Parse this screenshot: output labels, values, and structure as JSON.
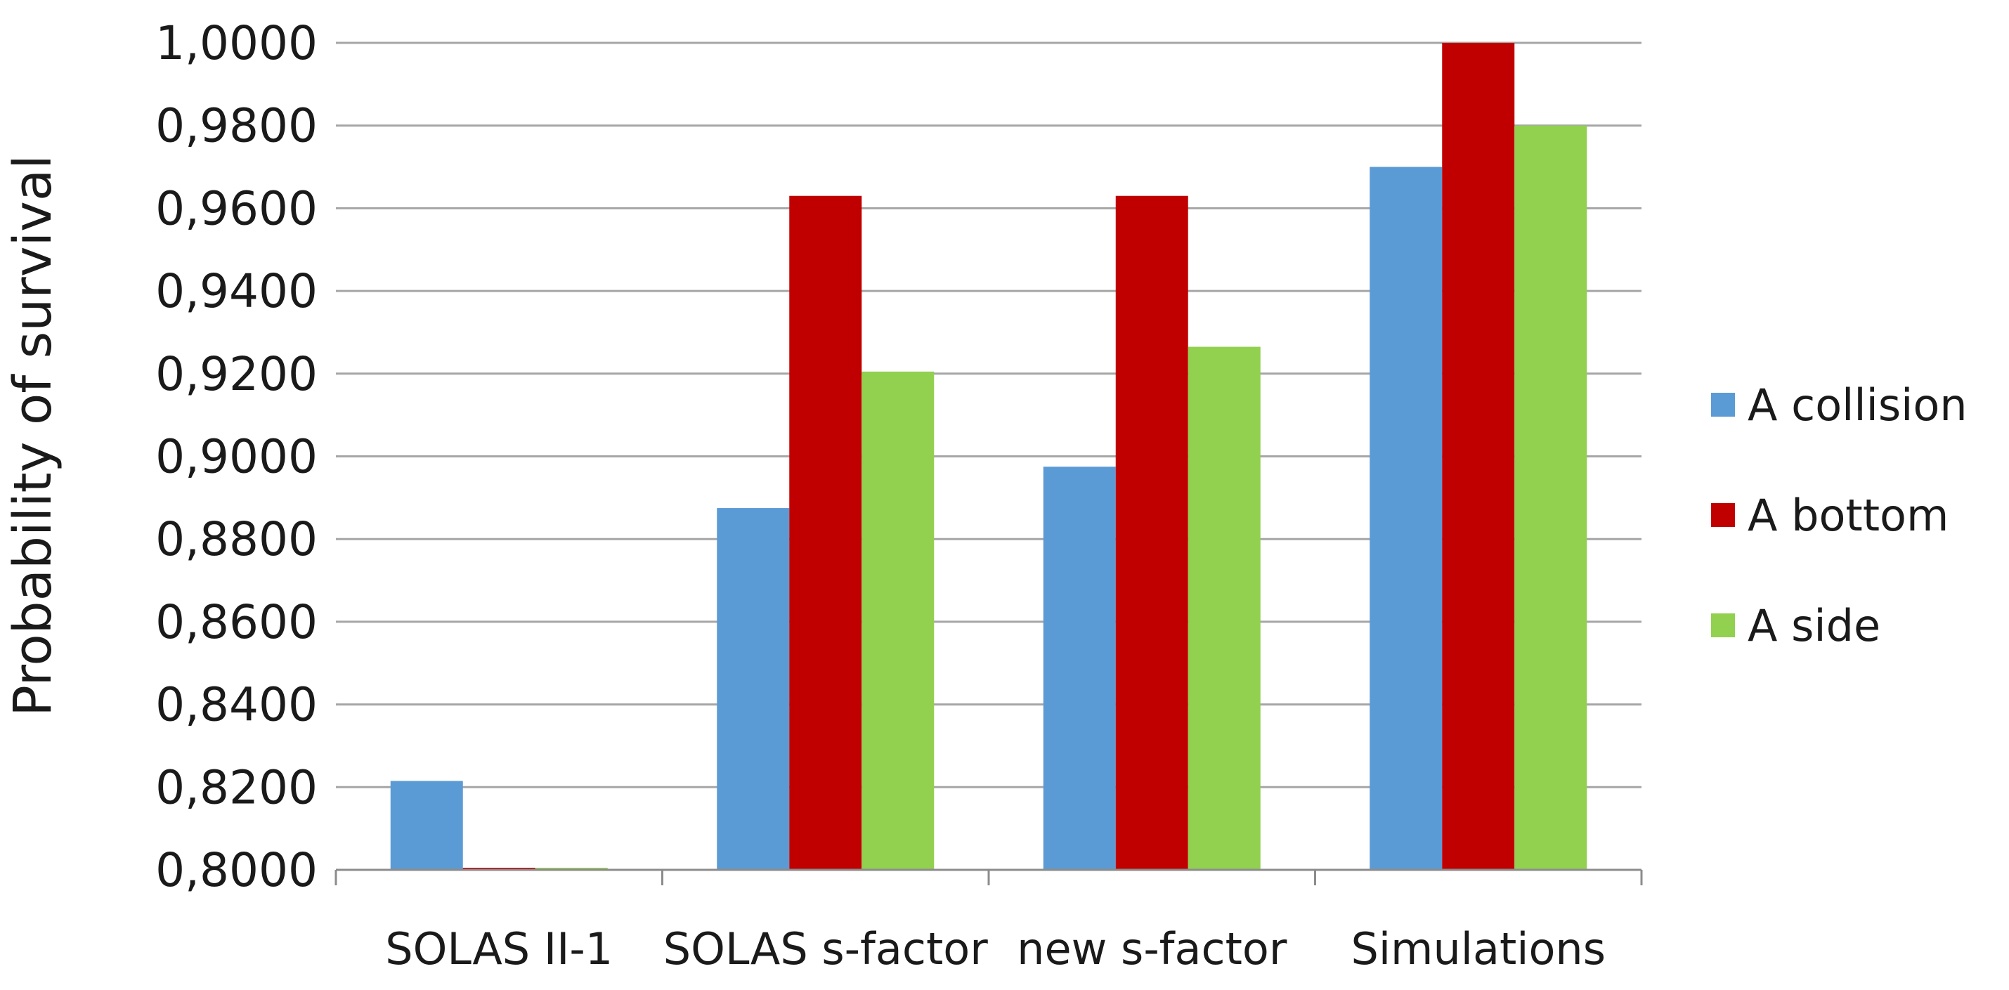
{
  "chart_data": {
    "type": "bar",
    "title": "",
    "xlabel": "",
    "ylabel": "Probability of survival",
    "ylim": [
      0.8,
      1.0
    ],
    "yticks": [
      "0,8000",
      "0,8200",
      "0,8400",
      "0,8600",
      "0,8800",
      "0,9000",
      "0,9200",
      "0,9400",
      "0,9600",
      "0,9800",
      "1,0000"
    ],
    "categories": [
      "SOLAS II-1",
      "SOLAS s-factor",
      "new s-factor",
      "Simulations"
    ],
    "series": [
      {
        "name": "A collision",
        "color": "#5b9bd5",
        "values": [
          0.8215,
          0.8875,
          0.8975,
          0.97
        ]
      },
      {
        "name": "A bottom",
        "color": "#c00000",
        "values": [
          0.8,
          0.963,
          0.963,
          1.0
        ]
      },
      {
        "name": "A side",
        "color": "#92d050",
        "values": [
          0.8002,
          0.9205,
          0.9265,
          0.98
        ]
      }
    ],
    "grid": true,
    "legend_position": "right"
  }
}
